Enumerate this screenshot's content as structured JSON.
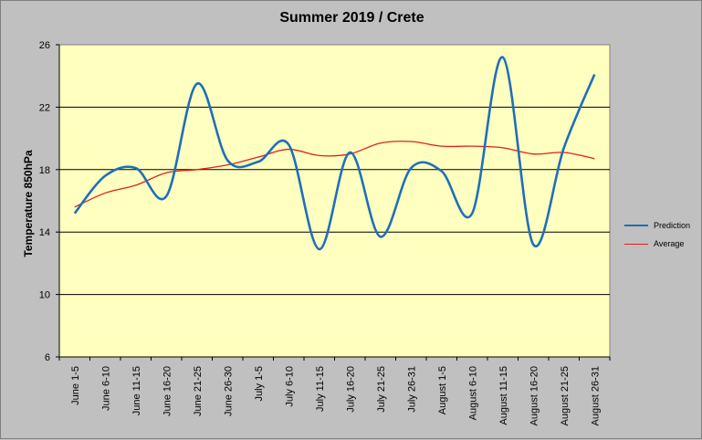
{
  "chart_data": {
    "type": "line",
    "title": "Summer 2019 / Crete",
    "xlabel": "",
    "ylabel": "Temperature 850hPa",
    "ylim": [
      6,
      26
    ],
    "yticks": [
      6,
      10,
      14,
      18,
      22,
      26
    ],
    "grid": true,
    "legend_position": "right",
    "categories": [
      "June 1-5",
      "June 6-10",
      "June 11-15",
      "June 16-20",
      "June 21-25",
      "June 26-30",
      "July 1-5",
      "July 6-10",
      "July 11-15",
      "July 16-20",
      "July 21-25",
      "July 26-31",
      "August 1-5",
      "August 6-10",
      "August 11-15",
      "August 16-20",
      "August 21-25",
      "August 26-31"
    ],
    "series": [
      {
        "name": "Prediction",
        "color": "#1f6fb8",
        "values": [
          15.2,
          17.6,
          18.1,
          16.3,
          23.5,
          18.6,
          18.5,
          19.6,
          12.9,
          19.1,
          13.7,
          18.1,
          17.9,
          15.2,
          25.2,
          13.2,
          19.4,
          24.1
        ]
      },
      {
        "name": "Average",
        "color": "#e0201c",
        "values": [
          15.6,
          16.5,
          17.0,
          17.8,
          18.0,
          18.3,
          18.8,
          19.3,
          18.9,
          19.0,
          19.7,
          19.8,
          19.5,
          19.5,
          19.4,
          19.0,
          19.1,
          18.7
        ]
      }
    ],
    "plot_background": "#ffffc0",
    "chart_background": "#c0c0c0"
  }
}
